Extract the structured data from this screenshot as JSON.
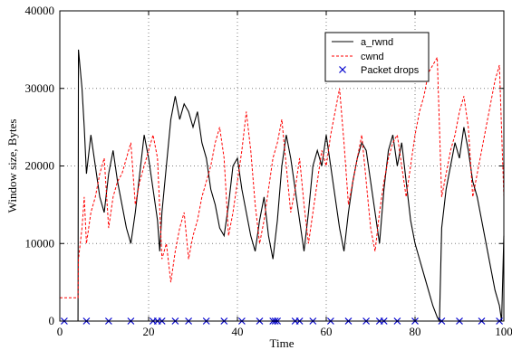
{
  "chart_data": {
    "type": "line",
    "title": "",
    "xlabel": "Time",
    "ylabel": "Window size, Bytes",
    "xlim": [
      0,
      100
    ],
    "ylim": [
      0,
      40000
    ],
    "xticks": [
      0,
      20,
      40,
      60,
      80,
      100
    ],
    "yticks": [
      0,
      10000,
      20000,
      30000,
      40000
    ],
    "x_tick_labels": [
      "0",
      "20",
      "40",
      "60",
      "80",
      "100"
    ],
    "y_tick_labels": [
      "0",
      "10000",
      "20000",
      "30000",
      "40000"
    ],
    "grid": true,
    "legend_position": "top-right",
    "series": [
      {
        "name": "a_rwnd",
        "color": "#000000",
        "style": "solid",
        "points": [
          [
            0,
            0
          ],
          [
            4,
            0
          ],
          [
            4.1,
            0
          ],
          [
            4.2,
            35000
          ],
          [
            5,
            30000
          ],
          [
            5.5,
            25000
          ],
          [
            6,
            19000
          ],
          [
            7,
            24000
          ],
          [
            8,
            20000
          ],
          [
            9,
            16000
          ],
          [
            10,
            14000
          ],
          [
            11,
            19000
          ],
          [
            12,
            22000
          ],
          [
            13,
            18000
          ],
          [
            14,
            15000
          ],
          [
            15,
            12000
          ],
          [
            16,
            10000
          ],
          [
            17,
            14000
          ],
          [
            18,
            19000
          ],
          [
            19,
            24000
          ],
          [
            20,
            21000
          ],
          [
            21,
            17000
          ],
          [
            22,
            13000
          ],
          [
            22.5,
            9000
          ],
          [
            23,
            14000
          ],
          [
            24,
            20000
          ],
          [
            25,
            26000
          ],
          [
            26,
            29000
          ],
          [
            27,
            26000
          ],
          [
            28,
            28000
          ],
          [
            29,
            27000
          ],
          [
            30,
            25000
          ],
          [
            31,
            27000
          ],
          [
            32,
            23000
          ],
          [
            33,
            21000
          ],
          [
            34,
            17000
          ],
          [
            35,
            15000
          ],
          [
            36,
            12000
          ],
          [
            37,
            11000
          ],
          [
            38,
            15000
          ],
          [
            39,
            20000
          ],
          [
            40,
            21000
          ],
          [
            41,
            17000
          ],
          [
            42,
            14000
          ],
          [
            43,
            11000
          ],
          [
            44,
            9000
          ],
          [
            45,
            13000
          ],
          [
            46,
            16000
          ],
          [
            47,
            11000
          ],
          [
            48,
            8000
          ],
          [
            49,
            13000
          ],
          [
            50,
            20000
          ],
          [
            51,
            24000
          ],
          [
            52,
            21000
          ],
          [
            53,
            17000
          ],
          [
            54,
            13000
          ],
          [
            55,
            9000
          ],
          [
            56,
            14000
          ],
          [
            57,
            20000
          ],
          [
            58,
            22000
          ],
          [
            59,
            20000
          ],
          [
            60,
            24000
          ],
          [
            61,
            20000
          ],
          [
            62,
            16000
          ],
          [
            63,
            12000
          ],
          [
            64,
            9000
          ],
          [
            65,
            14000
          ],
          [
            66,
            18000
          ],
          [
            67,
            21000
          ],
          [
            68,
            23000
          ],
          [
            69,
            22000
          ],
          [
            70,
            18000
          ],
          [
            71,
            14000
          ],
          [
            72,
            10000
          ],
          [
            73,
            17000
          ],
          [
            74,
            22000
          ],
          [
            75,
            24000
          ],
          [
            76,
            20000
          ],
          [
            77,
            23000
          ],
          [
            78,
            18000
          ],
          [
            79,
            13000
          ],
          [
            80,
            10000
          ],
          [
            81,
            8000
          ],
          [
            82,
            6000
          ],
          [
            83,
            4000
          ],
          [
            84,
            2000
          ],
          [
            85,
            500
          ],
          [
            85.5,
            0
          ],
          [
            86,
            12000
          ],
          [
            87,
            17000
          ],
          [
            88,
            20000
          ],
          [
            89,
            23000
          ],
          [
            90,
            21000
          ],
          [
            91,
            25000
          ],
          [
            92,
            22000
          ],
          [
            93,
            18000
          ],
          [
            94,
            16000
          ],
          [
            95,
            13000
          ],
          [
            96,
            10000
          ],
          [
            97,
            7000
          ],
          [
            98,
            4000
          ],
          [
            99,
            2000
          ],
          [
            99.5,
            0
          ],
          [
            100,
            11000
          ]
        ]
      },
      {
        "name": "cwnd",
        "color": "#ff0000",
        "style": "dashed",
        "points": [
          [
            0,
            3000
          ],
          [
            4,
            3000
          ],
          [
            4.1,
            3000
          ],
          [
            4.2,
            8000
          ],
          [
            5,
            12000
          ],
          [
            5.5,
            16000
          ],
          [
            6,
            10000
          ],
          [
            7,
            14000
          ],
          [
            8,
            16000
          ],
          [
            9,
            19000
          ],
          [
            10,
            21000
          ],
          [
            11,
            12000
          ],
          [
            12,
            16000
          ],
          [
            13,
            18000
          ],
          [
            14,
            19000
          ],
          [
            15,
            21000
          ],
          [
            16,
            23000
          ],
          [
            17,
            15000
          ],
          [
            18,
            18000
          ],
          [
            19,
            20000
          ],
          [
            20,
            22000
          ],
          [
            21,
            24000
          ],
          [
            22,
            21000
          ],
          [
            23,
            8000
          ],
          [
            24,
            10000
          ],
          [
            25,
            5000
          ],
          [
            26,
            9000
          ],
          [
            27,
            12000
          ],
          [
            28,
            14000
          ],
          [
            29,
            8000
          ],
          [
            30,
            11000
          ],
          [
            31,
            13000
          ],
          [
            32,
            16000
          ],
          [
            33,
            18000
          ],
          [
            34,
            20000
          ],
          [
            35,
            23000
          ],
          [
            36,
            25000
          ],
          [
            37,
            21000
          ],
          [
            38,
            11000
          ],
          [
            39,
            14000
          ],
          [
            40,
            18000
          ],
          [
            41,
            22000
          ],
          [
            42,
            27000
          ],
          [
            43,
            22000
          ],
          [
            44,
            15000
          ],
          [
            45,
            10000
          ],
          [
            46,
            13000
          ],
          [
            47,
            17000
          ],
          [
            48,
            21000
          ],
          [
            49,
            23000
          ],
          [
            50,
            26000
          ],
          [
            51,
            20000
          ],
          [
            52,
            14000
          ],
          [
            53,
            17000
          ],
          [
            54,
            21000
          ],
          [
            55,
            15000
          ],
          [
            56,
            10000
          ],
          [
            57,
            14000
          ],
          [
            58,
            18000
          ],
          [
            59,
            22000
          ],
          [
            60,
            20000
          ],
          [
            61,
            24000
          ],
          [
            62,
            27000
          ],
          [
            63,
            30000
          ],
          [
            64,
            23000
          ],
          [
            65,
            15000
          ],
          [
            66,
            18000
          ],
          [
            67,
            21000
          ],
          [
            68,
            24000
          ],
          [
            69,
            18000
          ],
          [
            70,
            12000
          ],
          [
            71,
            9000
          ],
          [
            72,
            14000
          ],
          [
            73,
            18000
          ],
          [
            74,
            21000
          ],
          [
            75,
            23000
          ],
          [
            76,
            24000
          ],
          [
            77,
            20000
          ],
          [
            78,
            16000
          ],
          [
            79,
            20000
          ],
          [
            80,
            24000
          ],
          [
            81,
            27000
          ],
          [
            82,
            29000
          ],
          [
            83,
            32000
          ],
          [
            84,
            33000
          ],
          [
            85,
            34000
          ],
          [
            85.5,
            25000
          ],
          [
            86,
            16000
          ],
          [
            87,
            19000
          ],
          [
            88,
            22000
          ],
          [
            89,
            24000
          ],
          [
            90,
            27000
          ],
          [
            91,
            29000
          ],
          [
            92,
            25000
          ],
          [
            93,
            16000
          ],
          [
            94,
            19000
          ],
          [
            95,
            22000
          ],
          [
            96,
            25000
          ],
          [
            97,
            28000
          ],
          [
            98,
            31000
          ],
          [
            99,
            33000
          ],
          [
            100,
            16000
          ]
        ]
      },
      {
        "name": "Packet drops",
        "color": "#0000cc",
        "style": "markers",
        "marker": "x",
        "points": [
          [
            1,
            0
          ],
          [
            6,
            0
          ],
          [
            11,
            0
          ],
          [
            16,
            0
          ],
          [
            21,
            0
          ],
          [
            22,
            0
          ],
          [
            23,
            0
          ],
          [
            26,
            0
          ],
          [
            29,
            0
          ],
          [
            33,
            0
          ],
          [
            37,
            0
          ],
          [
            41,
            0
          ],
          [
            45,
            0
          ],
          [
            48,
            0
          ],
          [
            48.5,
            0
          ],
          [
            49,
            0
          ],
          [
            53,
            0
          ],
          [
            54,
            0
          ],
          [
            57,
            0
          ],
          [
            61,
            0
          ],
          [
            65,
            0
          ],
          [
            69,
            0
          ],
          [
            72,
            0
          ],
          [
            73,
            0
          ],
          [
            76,
            0
          ],
          [
            80,
            0
          ],
          [
            86,
            0
          ],
          [
            90,
            0
          ],
          [
            95,
            0
          ],
          [
            99,
            0
          ]
        ]
      }
    ]
  }
}
